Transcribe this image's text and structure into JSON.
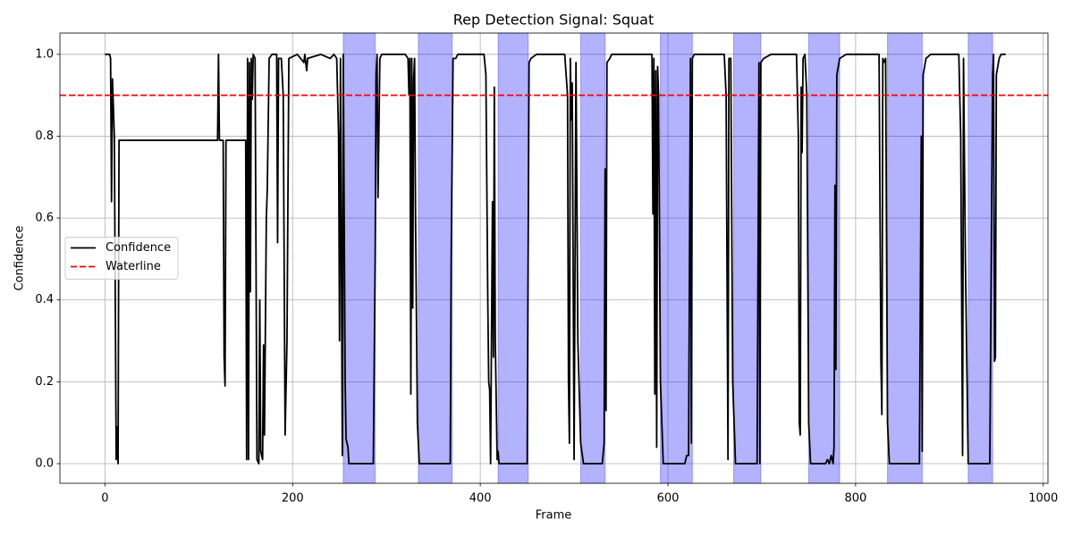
{
  "chart_data": {
    "type": "line",
    "title": "Rep Detection Signal: Squat",
    "x_label": "Frame",
    "y_label": "Confidence",
    "xlim": [
      -48,
      1005
    ],
    "ylim": [
      -0.048,
      1.052
    ],
    "xticks": [
      0,
      200,
      400,
      600,
      800,
      1000
    ],
    "yticks": [
      {
        "value": 0,
        "label": "0.0"
      },
      {
        "value": 0.2,
        "label": "0.2"
      },
      {
        "value": 0.4,
        "label": "0.4"
      },
      {
        "value": 0.6,
        "label": "0.6"
      },
      {
        "value": 0.8,
        "label": "0.8"
      },
      {
        "value": 1,
        "label": "1.0"
      }
    ],
    "grid": true,
    "legend": "center left",
    "series": [
      {
        "name": "Confidence",
        "color": "#000000",
        "x": [
          0,
          5,
          6,
          7,
          8,
          10,
          12,
          13,
          14,
          15,
          120,
          121,
          122,
          126,
          127,
          128,
          129,
          150,
          151,
          152,
          153,
          154,
          155,
          156,
          157,
          158,
          160,
          162,
          164,
          165,
          166,
          168,
          169,
          170,
          172,
          173,
          175,
          178,
          183,
          184,
          185,
          188,
          190,
          192,
          194,
          196,
          205,
          212,
          213,
          215,
          216,
          230,
          240,
          244,
          247,
          249,
          250,
          251,
          252,
          253,
          254,
          256,
          257,
          259,
          260,
          286,
          288,
          289,
          290,
          291,
          293,
          295,
          320,
          323,
          324,
          325,
          326,
          327,
          328,
          329,
          330,
          331,
          333,
          335,
          368,
          369,
          371,
          374,
          376,
          404,
          406,
          408,
          409,
          410,
          411,
          413,
          414,
          415,
          416,
          418,
          419,
          420,
          450,
          451,
          452,
          454,
          460,
          490,
          493,
          494,
          495,
          496,
          497,
          498,
          500,
          502,
          504,
          507,
          510,
          530,
          532,
          533,
          534,
          535,
          538,
          540,
          583,
          584,
          585,
          586,
          587,
          588,
          589,
          590,
          592,
          595,
          618,
          620,
          622,
          624,
          625,
          626,
          628,
          660,
          662,
          664,
          665,
          667,
          669,
          672,
          695,
          697,
          698,
          699,
          702,
          710,
          737,
          739,
          740,
          741,
          742,
          743,
          744,
          746,
          748,
          750,
          752,
          768,
          770,
          772,
          774,
          776,
          777,
          778,
          779,
          780,
          783,
          790,
          825,
          827,
          828,
          829,
          830,
          832,
          834,
          836,
          868,
          870,
          871,
          872,
          875,
          880,
          910,
          912,
          914,
          915,
          917,
          920,
          943,
          946,
          947,
          948,
          949,
          950,
          953,
          955,
          960
        ],
        "values": [
          1.0,
          1.0,
          0.99,
          0.64,
          0.94,
          0.8,
          0.01,
          0.09,
          0.0,
          0.79,
          0.79,
          1.0,
          0.79,
          0.79,
          0.26,
          0.19,
          0.79,
          0.79,
          0.01,
          0.99,
          0.01,
          0.98,
          0.42,
          0.99,
          0.89,
          1.0,
          0.99,
          0.01,
          0.0,
          0.4,
          0.03,
          0.01,
          0.29,
          0.07,
          0.6,
          0.67,
          0.99,
          1.0,
          1.0,
          0.54,
          0.99,
          0.99,
          0.9,
          0.07,
          0.3,
          0.99,
          1.0,
          0.98,
          1.0,
          0.96,
          0.99,
          1.0,
          0.99,
          1.0,
          0.99,
          0.8,
          0.3,
          0.99,
          0.5,
          0.02,
          1.0,
          0.2,
          0.06,
          0.04,
          0.0,
          0.0,
          0.5,
          0.95,
          1.0,
          0.65,
          0.99,
          1.0,
          1.0,
          0.99,
          0.9,
          0.99,
          0.17,
          0.99,
          0.38,
          0.94,
          0.99,
          0.6,
          0.1,
          0.0,
          0.0,
          0.5,
          0.99,
          0.99,
          1.0,
          1.0,
          0.95,
          0.4,
          0.2,
          0.18,
          0.0,
          0.64,
          0.26,
          0.92,
          0.3,
          0.01,
          0.03,
          0.0,
          0.0,
          0.5,
          0.98,
          0.99,
          1.0,
          1.0,
          0.9,
          0.2,
          0.05,
          0.99,
          0.84,
          0.93,
          0.01,
          0.98,
          0.3,
          0.05,
          0.0,
          0.0,
          0.05,
          0.72,
          0.13,
          0.98,
          0.99,
          1.0,
          1.0,
          0.61,
          0.99,
          0.17,
          0.96,
          0.04,
          0.97,
          0.9,
          0.2,
          0.0,
          0.0,
          0.02,
          0.02,
          0.99,
          0.05,
          0.99,
          1.0,
          1.0,
          0.9,
          0.01,
          0.99,
          0.99,
          0.2,
          0.0,
          0.0,
          0.98,
          0.0,
          0.98,
          0.99,
          1.0,
          1.0,
          0.8,
          0.1,
          0.07,
          0.92,
          0.76,
          0.99,
          1.0,
          0.9,
          0.1,
          0.0,
          0.0,
          0.01,
          0.0,
          0.02,
          0.0,
          0.04,
          0.68,
          0.23,
          0.95,
          0.99,
          1.0,
          1.0,
          0.25,
          0.12,
          0.99,
          0.98,
          0.99,
          0.1,
          0.0,
          0.0,
          0.8,
          0.03,
          0.95,
          0.99,
          1.0,
          1.0,
          0.8,
          0.02,
          0.99,
          0.5,
          0.0,
          0.0,
          0.95,
          1.0,
          0.25,
          0.26,
          0.95,
          0.99,
          1.0,
          1.0
        ]
      }
    ],
    "hline": {
      "name": "Waterline",
      "value": 0.9,
      "color": "#ff0000",
      "style": "dashed"
    },
    "spans": [
      [
        254,
        288
      ],
      [
        334,
        370
      ],
      [
        419,
        451
      ],
      [
        507,
        533
      ],
      [
        592,
        626
      ],
      [
        670,
        699
      ],
      [
        750,
        783
      ],
      [
        834,
        871
      ],
      [
        920,
        946
      ]
    ],
    "span_color": "#0000ff",
    "span_alpha": 0.3
  }
}
